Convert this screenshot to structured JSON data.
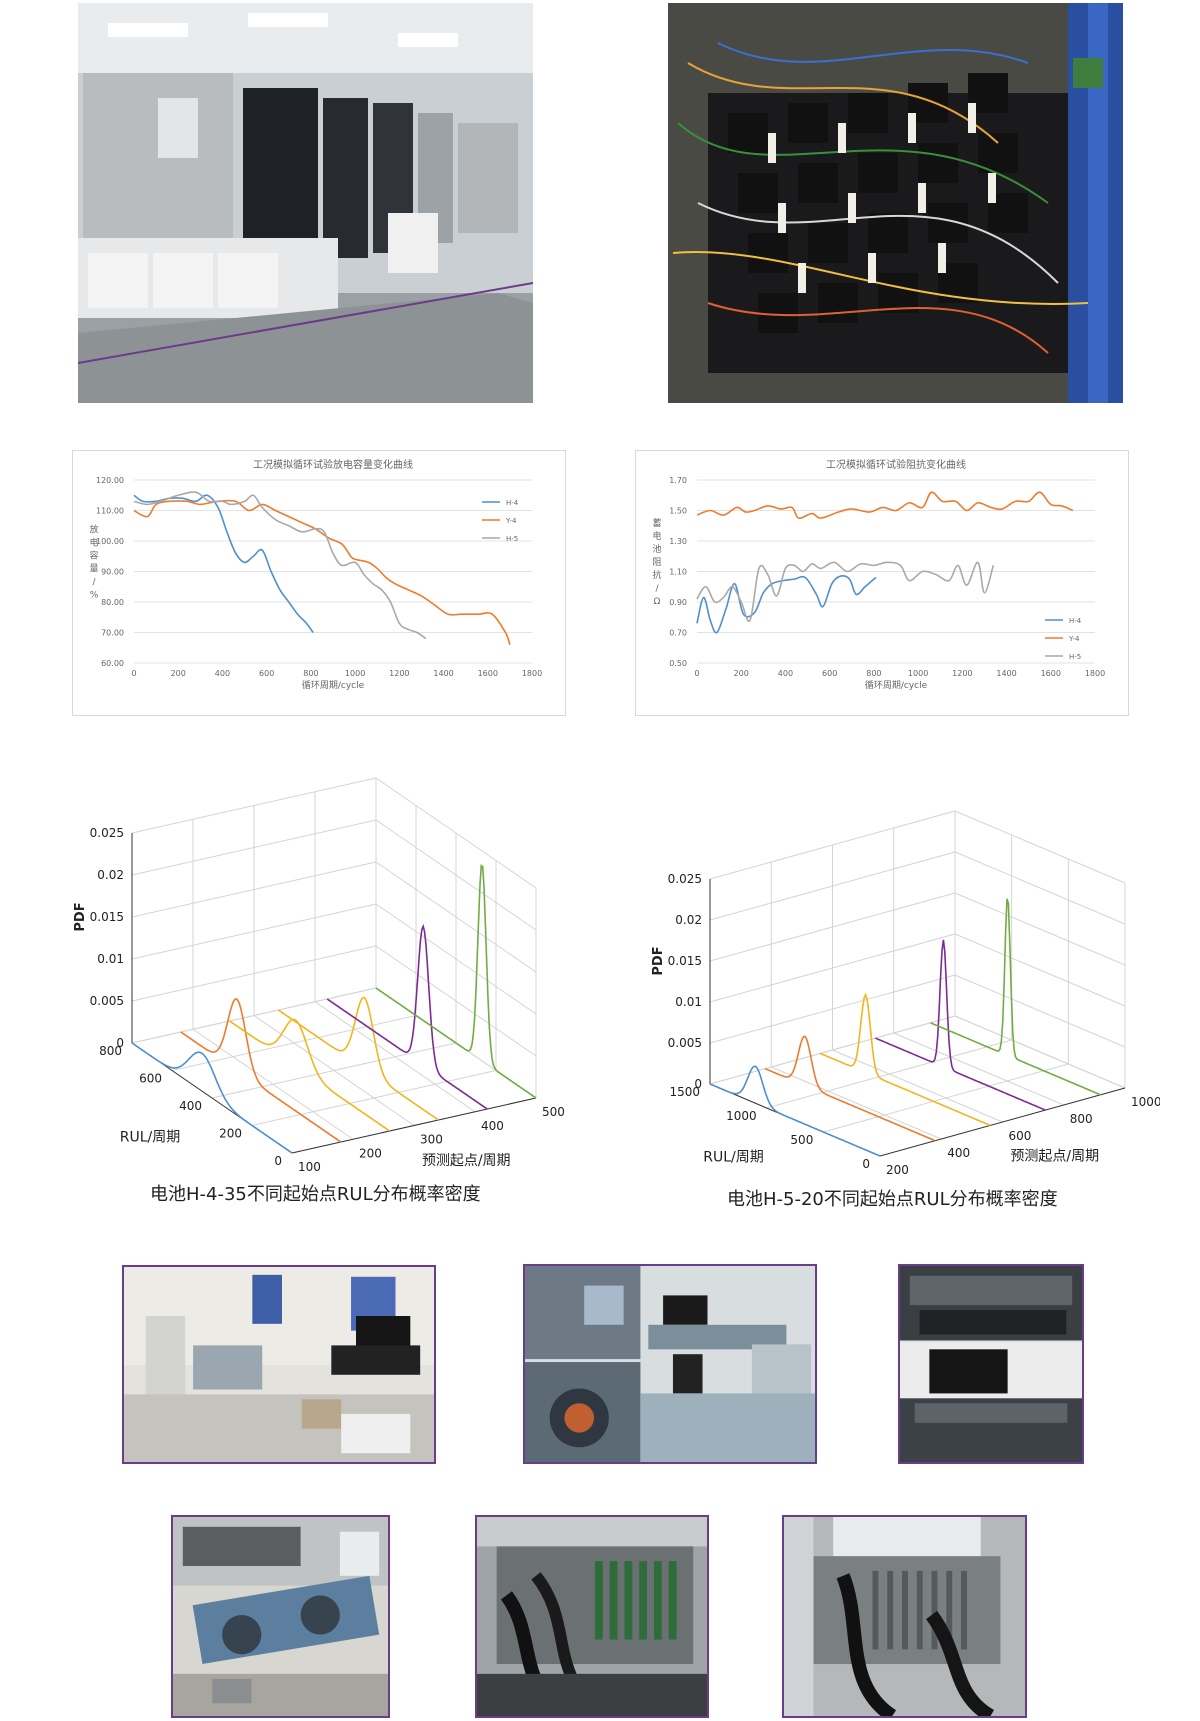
{
  "photos": [
    {
      "id": "lab-chambers",
      "description": ""
    },
    {
      "id": "battery-wiring",
      "description": ""
    },
    {
      "id": "workshop-console",
      "description": ""
    },
    {
      "id": "bogie-console",
      "description": ""
    },
    {
      "id": "driver-desk",
      "description": ""
    },
    {
      "id": "bogie-frame",
      "description": ""
    },
    {
      "id": "rack-cables-1",
      "description": ""
    },
    {
      "id": "rack-cables-2",
      "description": ""
    }
  ],
  "captions": {
    "left": "电池H-4-35不同起始点RUL分布概率密度",
    "right": "电池H-5-20不同起始点RUL分布概率密度"
  },
  "colors": {
    "blue": "#4f8fcf",
    "orange": "#f07a2c",
    "gray": "#a9a9a9",
    "yellow": "#f2b51c",
    "purple": "#7c2a96",
    "green": "#6fad44"
  },
  "chart_data": [
    {
      "type": "line",
      "title": "工况模拟循环试验放电容量变化曲线",
      "xlabel": "循环周期/cycle",
      "ylabel": "放电容量/%",
      "xlim": [
        0,
        1800
      ],
      "ylim": [
        60,
        120
      ],
      "xticks": [
        "0",
        "200",
        "400",
        "600",
        "800",
        "1000",
        "1200",
        "1400",
        "1600",
        "1800"
      ],
      "yticks": [
        "60.00",
        "70.00",
        "80.00",
        "90.00",
        "100.00",
        "110.00",
        "120.00"
      ],
      "grid": true,
      "legend": "top-right",
      "series": [
        {
          "name": "H-4",
          "color": "#4f8fcf",
          "points": [
            [
              0,
              115
            ],
            [
              40,
              113
            ],
            [
              100,
              113
            ],
            [
              160,
              114
            ],
            [
              220,
              114
            ],
            [
              280,
              113
            ],
            [
              330,
              115
            ],
            [
              380,
              111
            ],
            [
              420,
              103
            ],
            [
              460,
              96
            ],
            [
              500,
              93
            ],
            [
              540,
              95
            ],
            [
              580,
              97
            ],
            [
              620,
              90
            ],
            [
              660,
              84
            ],
            [
              700,
              80
            ],
            [
              740,
              76
            ],
            [
              780,
              73
            ],
            [
              810,
              70
            ]
          ]
        },
        {
          "name": "Y-4",
          "color": "#f07a2c",
          "points": [
            [
              0,
              110
            ],
            [
              60,
              108
            ],
            [
              100,
              112
            ],
            [
              160,
              113
            ],
            [
              240,
              113
            ],
            [
              300,
              112
            ],
            [
              380,
              113
            ],
            [
              460,
              113
            ],
            [
              520,
              110
            ],
            [
              580,
              112
            ],
            [
              640,
              110
            ],
            [
              700,
              108
            ],
            [
              760,
              106
            ],
            [
              820,
              104
            ],
            [
              880,
              101
            ],
            [
              940,
              99
            ],
            [
              980,
              95
            ],
            [
              1000,
              94
            ],
            [
              1060,
              93
            ],
            [
              1100,
              91
            ],
            [
              1140,
              88
            ],
            [
              1180,
              86
            ],
            [
              1240,
              84
            ],
            [
              1300,
              82
            ],
            [
              1360,
              79
            ],
            [
              1420,
              76
            ],
            [
              1480,
              76
            ],
            [
              1520,
              76
            ],
            [
              1560,
              76
            ],
            [
              1620,
              76
            ],
            [
              1680,
              70
            ],
            [
              1700,
              66
            ]
          ]
        },
        {
          "name": "H-5",
          "color": "#a9a9a9",
          "points": [
            [
              0,
              113
            ],
            [
              60,
              112
            ],
            [
              120,
              113
            ],
            [
              200,
              115
            ],
            [
              280,
              116
            ],
            [
              340,
              113
            ],
            [
              400,
              113
            ],
            [
              440,
              112
            ],
            [
              500,
              113
            ],
            [
              540,
              115
            ],
            [
              580,
              111
            ],
            [
              640,
              107
            ],
            [
              700,
              105
            ],
            [
              760,
              103
            ],
            [
              820,
              104
            ],
            [
              860,
              103
            ],
            [
              900,
              96
            ],
            [
              940,
              92
            ],
            [
              1000,
              93
            ],
            [
              1040,
              89
            ],
            [
              1080,
              86
            ],
            [
              1120,
              84
            ],
            [
              1160,
              80
            ],
            [
              1200,
              73
            ],
            [
              1240,
              71
            ],
            [
              1280,
              70
            ],
            [
              1320,
              68
            ]
          ]
        }
      ]
    },
    {
      "type": "line",
      "title": "工况模拟循环试验阻抗变化曲线",
      "xlabel": "循环周期/cycle",
      "ylabel": "蓄电池阻抗/Ω",
      "xlim": [
        0,
        1800
      ],
      "ylim": [
        0.5,
        1.7
      ],
      "xticks": [
        "0",
        "200",
        "400",
        "600",
        "800",
        "1000",
        "1200",
        "1400",
        "1600",
        "1800"
      ],
      "yticks": [
        "0.50",
        "0.70",
        "0.90",
        "1.10",
        "1.30",
        "1.50",
        "1.70"
      ],
      "grid": true,
      "legend": "bottom-right",
      "series": [
        {
          "name": "H-4",
          "color": "#4f8fcf",
          "points": [
            [
              0,
              0.76
            ],
            [
              30,
              0.93
            ],
            [
              60,
              0.78
            ],
            [
              90,
              0.7
            ],
            [
              130,
              0.85
            ],
            [
              170,
              1.02
            ],
            [
              210,
              0.82
            ],
            [
              260,
              0.83
            ],
            [
              300,
              0.96
            ],
            [
              340,
              1.02
            ],
            [
              390,
              1.04
            ],
            [
              440,
              1.05
            ],
            [
              490,
              1.06
            ],
            [
              540,
              0.95
            ],
            [
              570,
              0.87
            ],
            [
              610,
              1.02
            ],
            [
              650,
              1.07
            ],
            [
              690,
              1.05
            ],
            [
              720,
              0.95
            ],
            [
              760,
              1.0
            ],
            [
              800,
              1.05
            ],
            [
              810,
              1.06
            ]
          ]
        },
        {
          "name": "Y-4",
          "color": "#f07a2c",
          "points": [
            [
              0,
              1.47
            ],
            [
              60,
              1.5
            ],
            [
              120,
              1.47
            ],
            [
              180,
              1.52
            ],
            [
              220,
              1.49
            ],
            [
              260,
              1.5
            ],
            [
              320,
              1.53
            ],
            [
              380,
              1.51
            ],
            [
              430,
              1.52
            ],
            [
              460,
              1.45
            ],
            [
              520,
              1.48
            ],
            [
              560,
              1.45
            ],
            [
              640,
              1.49
            ],
            [
              700,
              1.51
            ],
            [
              780,
              1.49
            ],
            [
              840,
              1.52
            ],
            [
              900,
              1.5
            ],
            [
              960,
              1.55
            ],
            [
              1020,
              1.52
            ],
            [
              1060,
              1.62
            ],
            [
              1110,
              1.56
            ],
            [
              1170,
              1.56
            ],
            [
              1220,
              1.5
            ],
            [
              1270,
              1.55
            ],
            [
              1330,
              1.52
            ],
            [
              1380,
              1.51
            ],
            [
              1440,
              1.56
            ],
            [
              1500,
              1.56
            ],
            [
              1550,
              1.62
            ],
            [
              1600,
              1.54
            ],
            [
              1650,
              1.53
            ],
            [
              1700,
              1.5
            ]
          ]
        },
        {
          "name": "H-5",
          "color": "#a9a9a9",
          "points": [
            [
              0,
              0.92
            ],
            [
              40,
              1.0
            ],
            [
              80,
              0.9
            ],
            [
              120,
              0.93
            ],
            [
              160,
              1.0
            ],
            [
              200,
              0.9
            ],
            [
              240,
              0.78
            ],
            [
              280,
              1.12
            ],
            [
              320,
              1.08
            ],
            [
              360,
              0.94
            ],
            [
              400,
              1.12
            ],
            [
              440,
              1.14
            ],
            [
              480,
              1.1
            ],
            [
              520,
              1.15
            ],
            [
              560,
              1.12
            ],
            [
              620,
              1.16
            ],
            [
              680,
              1.1
            ],
            [
              740,
              1.15
            ],
            [
              800,
              1.14
            ],
            [
              860,
              1.16
            ],
            [
              920,
              1.14
            ],
            [
              960,
              1.04
            ],
            [
              1020,
              1.1
            ],
            [
              1080,
              1.08
            ],
            [
              1140,
              1.04
            ],
            [
              1180,
              1.14
            ],
            [
              1220,
              1.01
            ],
            [
              1270,
              1.16
            ],
            [
              1300,
              0.96
            ],
            [
              1340,
              1.14
            ]
          ]
        }
      ]
    },
    {
      "type": "3d-line",
      "title": "电池H-4-35不同起始点RUL分布概率密度",
      "zlabel": "PDF",
      "ylabel": "RUL/周期",
      "xlabel": "预测起点/周期",
      "zticks": [
        "0",
        "0.005",
        "0.01",
        "0.015",
        "0.02",
        "0.025"
      ],
      "yticks": [
        "0",
        "200",
        "400",
        "600",
        "800"
      ],
      "xticks": [
        "100",
        "200",
        "300",
        "400",
        "500"
      ],
      "series": [
        {
          "start": 100,
          "peak_rul": 450,
          "peak_pdf": 0.0045,
          "color": "#4f8fcf"
        },
        {
          "start": 180,
          "peak_rul": 520,
          "peak_pdf": 0.0085,
          "color": "#f07a2c"
        },
        {
          "start": 260,
          "peak_rul": 470,
          "peak_pdf": 0.0055,
          "color": "#f2b51c"
        },
        {
          "start": 340,
          "peak_rul": 370,
          "peak_pdf": 0.0085,
          "color": "#f2b51c"
        },
        {
          "start": 420,
          "peak_rul": 320,
          "peak_pdf": 0.0165,
          "color": "#7c2a96"
        },
        {
          "start": 500,
          "peak_rul": 270,
          "peak_pdf": 0.0235,
          "color": "#6fad44"
        }
      ]
    },
    {
      "type": "3d-line",
      "title": "电池H-5-20不同起始点RUL分布概率密度",
      "zlabel": "PDF",
      "ylabel": "RUL/周期",
      "xlabel": "预测起点/周期",
      "zticks": [
        "0",
        "0.005",
        "0.01",
        "0.015",
        "0.02",
        "0.025"
      ],
      "yticks": [
        "0",
        "500",
        "1000",
        "1500"
      ],
      "xticks": [
        "200",
        "400",
        "600",
        "800",
        "1000"
      ],
      "series": [
        {
          "start": 200,
          "peak_rul": 1100,
          "peak_pdf": 0.0045,
          "color": "#4f8fcf"
        },
        {
          "start": 380,
          "peak_rul": 1150,
          "peak_pdf": 0.006,
          "color": "#f07a2c"
        },
        {
          "start": 560,
          "peak_rul": 1100,
          "peak_pdf": 0.0095,
          "color": "#f2b51c"
        },
        {
          "start": 740,
          "peak_rul": 900,
          "peak_pdf": 0.0155,
          "color": "#7c2a96"
        },
        {
          "start": 920,
          "peak_rul": 820,
          "peak_pdf": 0.0195,
          "color": "#6fad44"
        }
      ]
    }
  ]
}
